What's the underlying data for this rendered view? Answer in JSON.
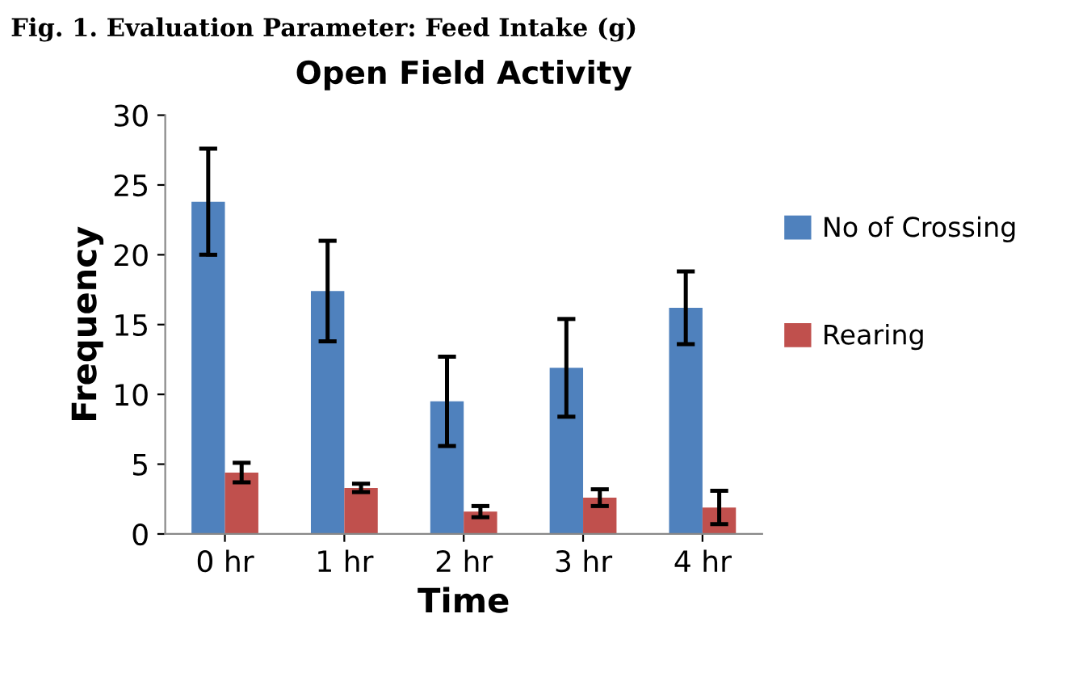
{
  "chart_data": {
    "type": "bar",
    "title": "Open Field Activity",
    "xlabel": "Time",
    "ylabel": "Frequency",
    "annotations": [
      "Fig. 1. Evaluation Parameter: Feed Intake (g)"
    ],
    "categories": [
      "0 hr",
      "1 hr",
      "2 hr",
      "3 hr",
      "4 hr"
    ],
    "series": [
      {
        "name": "No of Crossing",
        "color": "#4f81bd",
        "values": [
          23.8,
          17.4,
          9.5,
          11.9,
          16.2
        ],
        "errors": [
          3.8,
          3.6,
          3.2,
          3.5,
          2.6
        ]
      },
      {
        "name": "Rearing",
        "color": "#c0504d",
        "values": [
          4.4,
          3.3,
          1.6,
          2.6,
          1.9
        ],
        "errors": [
          0.7,
          0.3,
          0.4,
          0.6,
          1.2
        ]
      }
    ],
    "ylim": [
      0,
      30
    ],
    "yticks": [
      0,
      5,
      10,
      15,
      20,
      25,
      30
    ],
    "grid": false,
    "legend": "right"
  }
}
